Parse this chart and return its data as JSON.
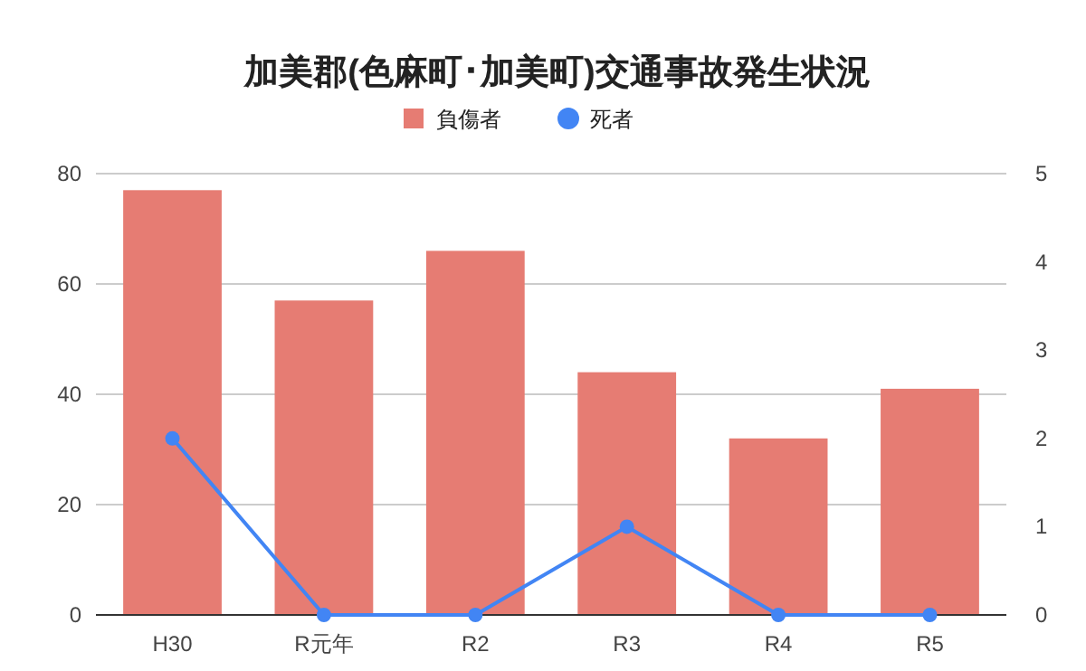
{
  "chart_data": {
    "type": "bar",
    "title": "加美郡(色麻町･加美町)交通事故発生状況",
    "categories": [
      "H30",
      "R元年",
      "R2",
      "R3",
      "R4",
      "R5"
    ],
    "series": [
      {
        "name": "負傷者",
        "color": "#e67c73",
        "values": [
          77,
          57,
          66,
          44,
          32,
          41
        ]
      },
      {
        "name": "死者",
        "type": "line",
        "axis": "y2",
        "color": "#4285f4",
        "marker": "circle",
        "values": [
          2,
          0,
          0,
          1,
          0,
          0
        ]
      }
    ],
    "ylim": [
      0,
      80
    ],
    "yticks": [
      0,
      20,
      40,
      60,
      80
    ],
    "y2lim": [
      0,
      5
    ],
    "y2ticks": [
      0,
      1,
      2,
      3,
      4,
      5
    ],
    "grid": "y",
    "legend": "top"
  }
}
